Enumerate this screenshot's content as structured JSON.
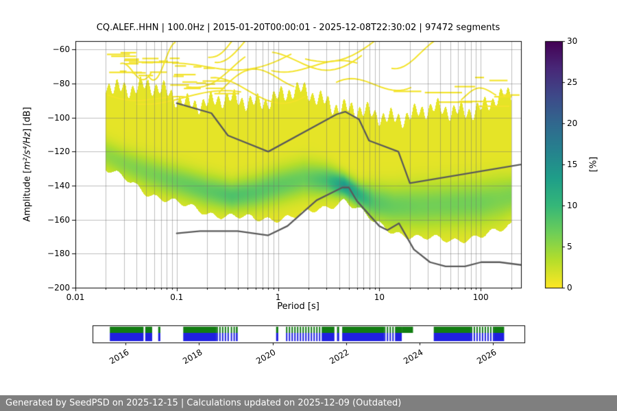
{
  "title": "CQ.ALEF..HHN | 100.0Hz | 2015-01-20T00:00:01 - 2025-12-08T22:30:02 | 97472 segments",
  "header": {
    "station_id": "CQ.ALEF..HHN",
    "sampling_rate": "100.0Hz",
    "time_span": "2015-01-20T00:00:01 - 2025-12-08T22:30:02",
    "segments": "97472 segments"
  },
  "axes": {
    "xlabel": "Period [s]",
    "ylabel_prefix": "Amplitude [",
    "ylabel_math": "m²/s⁴/Hz",
    "ylabel_suffix": "] [dB]",
    "x_range": [
      0.01,
      250
    ],
    "x_scale": "log",
    "x_tick_values": [
      0.01,
      0.1,
      1,
      10,
      100
    ],
    "x_tick_labels": [
      "0.01",
      "0.1",
      "1",
      "10",
      "100"
    ],
    "y_range": [
      -200,
      -55
    ],
    "y_tick_values": [
      -60,
      -80,
      -100,
      -120,
      -140,
      -160,
      -180,
      -200
    ],
    "y_tick_labels": [
      "−60",
      "−80",
      "−100",
      "−120",
      "−140",
      "−160",
      "−180",
      "−200"
    ]
  },
  "colorbar": {
    "label": "[%]",
    "range": [
      0,
      30
    ],
    "tick_values": [
      0,
      5,
      10,
      15,
      20,
      25,
      30
    ],
    "tick_labels": [
      "0",
      "5",
      "10",
      "15",
      "20",
      "25",
      "30"
    ],
    "colormap": "viridis_r",
    "stops": [
      "#fde725",
      "#b5de2b",
      "#6ece58",
      "#35b779",
      "#1f9e89",
      "#26828e",
      "#31688e",
      "#3e4989",
      "#482878",
      "#440154"
    ]
  },
  "chart_data": {
    "type": "heatmap",
    "description": "PPSD probability density: percent of segments per (period, amplitude) bin, with Peterson high/low noise model reference lines",
    "x_scale": "log",
    "percent_range": [
      0,
      30
    ],
    "high_noise_model": [
      [
        0.1,
        -91.5
      ],
      [
        0.22,
        -97.4
      ],
      [
        0.32,
        -110.5
      ],
      [
        0.8,
        -120.0
      ],
      [
        3.8,
        -98.0
      ],
      [
        4.6,
        -96.5
      ],
      [
        6.3,
        -101.0
      ],
      [
        7.9,
        -113.5
      ],
      [
        15.4,
        -120.0
      ],
      [
        20.0,
        -138.5
      ],
      [
        354.8,
        -126.0
      ]
    ],
    "low_noise_model": [
      [
        0.1,
        -168.0
      ],
      [
        0.17,
        -166.7
      ],
      [
        0.4,
        -166.7
      ],
      [
        0.8,
        -169.2
      ],
      [
        1.24,
        -163.7
      ],
      [
        2.4,
        -148.6
      ],
      [
        4.3,
        -141.1
      ],
      [
        5.0,
        -141.1
      ],
      [
        6.0,
        -149.0
      ],
      [
        10.0,
        -163.8
      ],
      [
        12.0,
        -166.2
      ],
      [
        15.6,
        -162.1
      ],
      [
        21.9,
        -177.5
      ],
      [
        31.6,
        -185.0
      ],
      [
        45.0,
        -187.5
      ],
      [
        70.0,
        -187.5
      ],
      [
        101.0,
        -185.0
      ],
      [
        154.0,
        -185.0
      ],
      [
        328.0,
        -187.5
      ]
    ],
    "density_profile": [
      {
        "period": 0.02,
        "top_db": -79,
        "bottom_db": -130,
        "mode_db": -122,
        "spread_db": 6,
        "peak_percent": 5
      },
      {
        "period": 0.03,
        "top_db": -81,
        "bottom_db": -136,
        "mode_db": -127,
        "spread_db": 6,
        "peak_percent": 5.5
      },
      {
        "period": 0.05,
        "top_db": -83,
        "bottom_db": -144,
        "mode_db": -132,
        "spread_db": 6.5,
        "peak_percent": 6
      },
      {
        "period": 0.08,
        "top_db": -86,
        "bottom_db": -148,
        "mode_db": -136,
        "spread_db": 6.5,
        "peak_percent": 6.5
      },
      {
        "period": 0.12,
        "top_db": -89,
        "bottom_db": -152,
        "mode_db": -139,
        "spread_db": 6.5,
        "peak_percent": 7
      },
      {
        "period": 0.2,
        "top_db": -91,
        "bottom_db": -156,
        "mode_db": -143,
        "spread_db": 6.5,
        "peak_percent": 7.5
      },
      {
        "period": 0.35,
        "top_db": -91,
        "bottom_db": -158,
        "mode_db": -146,
        "spread_db": 6,
        "peak_percent": 8.5
      },
      {
        "period": 0.6,
        "top_db": -89,
        "bottom_db": -160,
        "mode_db": -144,
        "spread_db": 6.5,
        "peak_percent": 8
      },
      {
        "period": 1.0,
        "top_db": -87,
        "bottom_db": -159,
        "mode_db": -140,
        "spread_db": 7,
        "peak_percent": 7.5
      },
      {
        "period": 1.8,
        "top_db": -86,
        "bottom_db": -157,
        "mode_db": -136,
        "spread_db": 7,
        "peak_percent": 7
      },
      {
        "period": 3.0,
        "top_db": -89,
        "bottom_db": -153,
        "mode_db": -137,
        "spread_db": 6,
        "peak_percent": 9
      },
      {
        "period": 4.5,
        "top_db": -93,
        "bottom_db": -148,
        "mode_db": -140,
        "spread_db": 4.5,
        "peak_percent": 14
      },
      {
        "period": 6.5,
        "top_db": -97,
        "bottom_db": -155,
        "mode_db": -146,
        "spread_db": 5,
        "peak_percent": 11
      },
      {
        "period": 9.0,
        "top_db": -101,
        "bottom_db": -162,
        "mode_db": -150,
        "spread_db": 7,
        "peak_percent": 8
      },
      {
        "period": 14.0,
        "top_db": -99,
        "bottom_db": -167,
        "mode_db": -152,
        "spread_db": 8,
        "peak_percent": 7
      },
      {
        "period": 25.0,
        "top_db": -95,
        "bottom_db": -171,
        "mode_db": -152,
        "spread_db": 9,
        "peak_percent": 6.5
      },
      {
        "period": 50.0,
        "top_db": -98,
        "bottom_db": -172,
        "mode_db": -151,
        "spread_db": 9,
        "peak_percent": 6.5
      },
      {
        "period": 100.0,
        "top_db": -92,
        "bottom_db": -170,
        "mode_db": -150,
        "spread_db": 9,
        "peak_percent": 6.5
      },
      {
        "period": 150.0,
        "top_db": -88,
        "bottom_db": -167,
        "mode_db": -148,
        "spread_db": 9,
        "peak_percent": 6
      },
      {
        "period": 200.0,
        "top_db": -90,
        "bottom_db": -163,
        "mode_db": -146,
        "spread_db": 8,
        "peak_percent": 6
      }
    ]
  },
  "timeline": {
    "range": [
      2015.1,
      2026.85
    ],
    "year_tick_values": [
      2016,
      2018,
      2020,
      2022,
      2024,
      2026
    ],
    "year_tick_labels": [
      "2016",
      "2018",
      "2020",
      "2022",
      "2024",
      "2026"
    ],
    "colors": {
      "green": "#127d12",
      "blue": "#2020e0"
    },
    "segments": [
      {
        "start": 0.04,
        "end": 0.118,
        "type": "both"
      },
      {
        "start": 0.122,
        "end": 0.138,
        "type": "both"
      },
      {
        "start": 0.152,
        "end": 0.157,
        "type": "both"
      },
      {
        "start": 0.21,
        "end": 0.287,
        "type": "both"
      },
      {
        "start": 0.287,
        "end": 0.315,
        "type": "stripes"
      },
      {
        "start": 0.32,
        "end": 0.328,
        "type": "stripes"
      },
      {
        "start": 0.332,
        "end": 0.336,
        "type": "both"
      },
      {
        "start": 0.425,
        "end": 0.43,
        "type": "both"
      },
      {
        "start": 0.448,
        "end": 0.532,
        "type": "stripes"
      },
      {
        "start": 0.532,
        "end": 0.56,
        "type": "both"
      },
      {
        "start": 0.566,
        "end": 0.571,
        "type": "both"
      },
      {
        "start": 0.578,
        "end": 0.675,
        "type": "both"
      },
      {
        "start": 0.675,
        "end": 0.702,
        "type": "stripes"
      },
      {
        "start": 0.702,
        "end": 0.716,
        "type": "both"
      },
      {
        "start": 0.716,
        "end": 0.742,
        "type": "green"
      },
      {
        "start": 0.79,
        "end": 0.876,
        "type": "both"
      },
      {
        "start": 0.876,
        "end": 0.93,
        "type": "stripes"
      },
      {
        "start": 0.93,
        "end": 0.953,
        "type": "both"
      }
    ]
  },
  "footer": {
    "text": "Generated by SeedPSD on 2025-12-15 | Calculations updated on 2025-12-09 (Outdated)",
    "background": "#7f7f7f"
  }
}
